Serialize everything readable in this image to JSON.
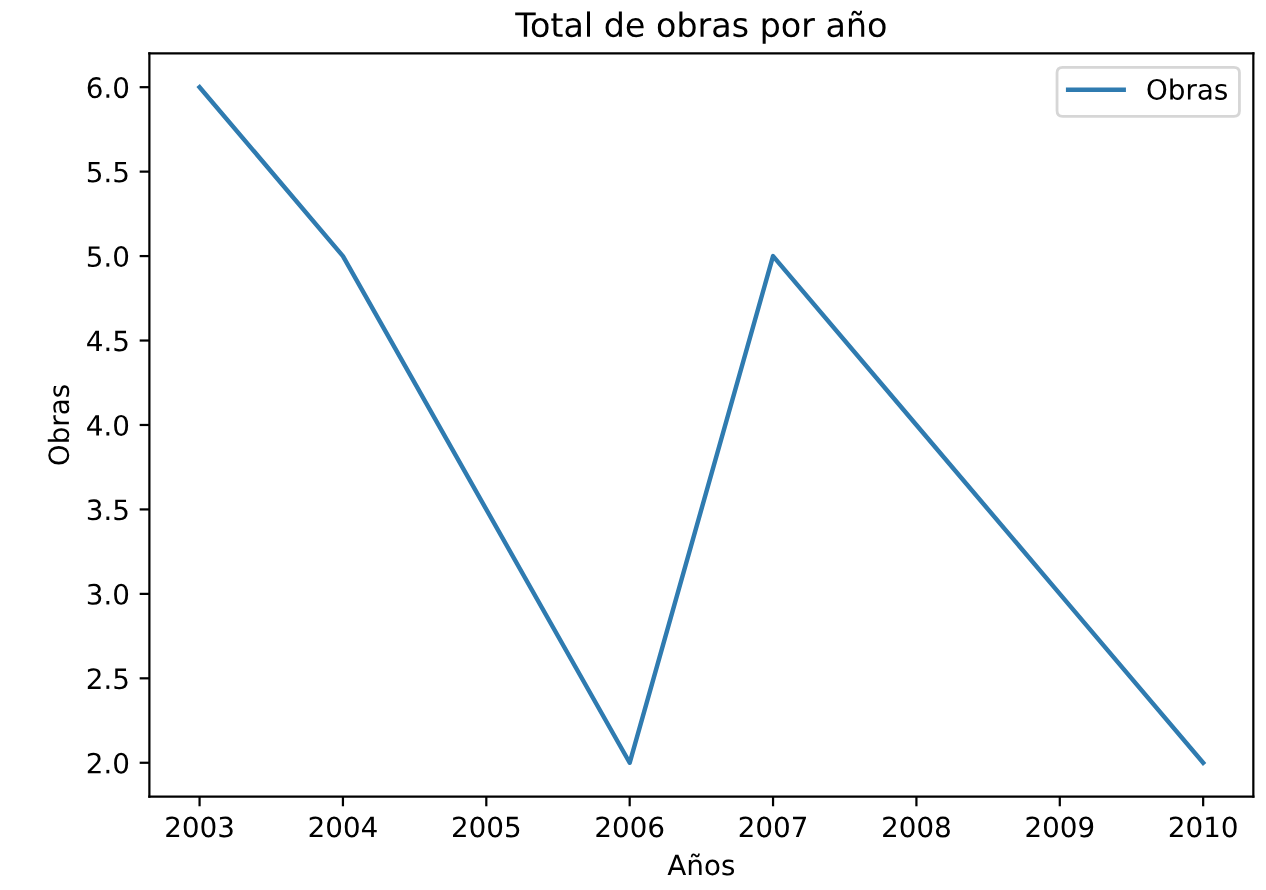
{
  "chart_data": {
    "type": "line",
    "title": "Total de obras por año",
    "xlabel": "Años",
    "ylabel": "Obras",
    "x": [
      2003,
      2004,
      2006,
      2007,
      2008,
      2009,
      2010
    ],
    "series": [
      {
        "name": "Obras",
        "color": "#2f7bb0",
        "values": [
          6,
          5,
          2,
          5,
          4,
          3,
          2
        ]
      }
    ],
    "xlim": [
      2002.65,
      2010.35
    ],
    "xticks": [
      2003,
      2004,
      2005,
      2006,
      2007,
      2008,
      2009,
      2010
    ],
    "ylim": [
      1.8,
      6.2
    ],
    "yticks": [
      {
        "value": 2,
        "label": "2.0"
      },
      {
        "value": 2.5,
        "label": "2.5"
      },
      {
        "value": 3,
        "label": "3.0"
      },
      {
        "value": 3.5,
        "label": "3.5"
      },
      {
        "value": 4,
        "label": "4.0"
      },
      {
        "value": 4.5,
        "label": "4.5"
      },
      {
        "value": 5,
        "label": "5.0"
      },
      {
        "value": 5.5,
        "label": "5.5"
      },
      {
        "value": 6,
        "label": "6.0"
      }
    ],
    "legend": "top right",
    "grid": false
  }
}
